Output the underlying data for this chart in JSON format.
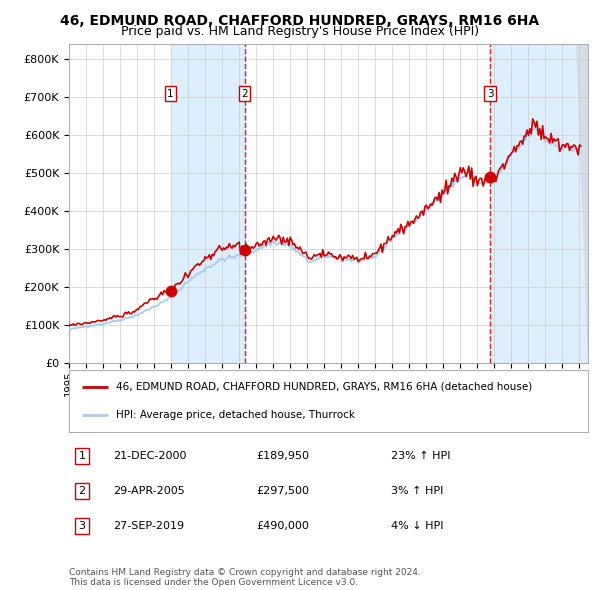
{
  "title_line1": "46, EDMUND ROAD, CHAFFORD HUNDRED, GRAYS, RM16 6HA",
  "title_line2": "Price paid vs. HM Land Registry's House Price Index (HPI)",
  "legend_line1": "46, EDMUND ROAD, CHAFFORD HUNDRED, GRAYS, RM16 6HA (detached house)",
  "legend_line2": "HPI: Average price, detached house, Thurrock",
  "transactions": [
    {
      "num": 1,
      "date": "21-DEC-2000",
      "date_decimal": 2000.97,
      "price": 189950,
      "pct": "23%",
      "dir": "↑"
    },
    {
      "num": 2,
      "date": "29-APR-2005",
      "date_decimal": 2005.32,
      "price": 297500,
      "pct": "3%",
      "dir": "↑"
    },
    {
      "num": 3,
      "date": "27-SEP-2019",
      "date_decimal": 2019.74,
      "price": 490000,
      "pct": "4%",
      "dir": "↓"
    }
  ],
  "ylabel_ticks": [
    "£0",
    "£100K",
    "£200K",
    "£300K",
    "£400K",
    "£500K",
    "£600K",
    "£700K",
    "£800K"
  ],
  "ytick_values": [
    0,
    100000,
    200000,
    300000,
    400000,
    500000,
    600000,
    700000,
    800000
  ],
  "ylim": [
    0,
    840000
  ],
  "xlim_start": 1995.3,
  "xlim_end": 2025.5,
  "red_color": "#cc0000",
  "blue_color": "#aaccee",
  "shade_color": "#ddeeff",
  "footer": "Contains HM Land Registry data © Crown copyright and database right 2024.\nThis data is licensed under the Open Government Licence v3.0.",
  "title_fontsize": 10,
  "subtitle_fontsize": 9
}
